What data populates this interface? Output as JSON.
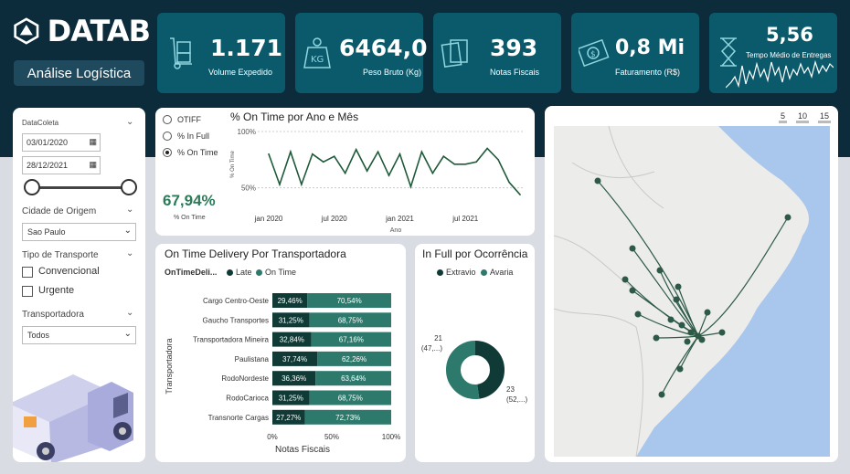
{
  "brand": {
    "logo_text": "DATAB",
    "page_button": "Análise Logística"
  },
  "kpis": [
    {
      "value": "1.171",
      "label": "Volume Expedido",
      "icon": "hand-truck-icon"
    },
    {
      "value": "6464,0",
      "label": "Peso Bruto (Kg)",
      "icon": "kg-weight-icon"
    },
    {
      "value": "393",
      "label": "Notas Fiscais",
      "icon": "documents-icon"
    },
    {
      "value": "0,8 Mi",
      "label": "Faturamento (R$)",
      "icon": "money-icon"
    },
    {
      "value": "5,56",
      "label": "Tempo Médio de Entregas",
      "icon": "hourglass-icon"
    }
  ],
  "filters": {
    "date_label": "DataColeta",
    "date_start": "03/01/2020",
    "date_end": "28/12/2021",
    "origin_label": "Cidade de Origem",
    "origin_value": "Sao Paulo",
    "transport_label": "Tipo de Transporte",
    "transport_options": [
      "Convencional",
      "Urgente"
    ],
    "carrier_label": "Transportadora",
    "carrier_value": "Todos"
  },
  "ontime": {
    "options": [
      "OTIFF",
      "% In Full",
      "% On Time"
    ],
    "selected": "% On Time",
    "big_value": "67,94%",
    "big_label": "% On Time",
    "title": "% On Time por Ano e Mês"
  },
  "chart_data": [
    {
      "type": "line",
      "title": "% On Time por Ano e Mês",
      "xlabel": "Ano",
      "ylabel": "% On Time",
      "yticks": [
        "100%",
        "50%"
      ],
      "xticks": [
        "jan 2020",
        "jul 2020",
        "jan 2021",
        "jul 2021"
      ],
      "ylim": [
        40,
        100
      ],
      "x": [
        "2020-01",
        "2020-02",
        "2020-03",
        "2020-04",
        "2020-05",
        "2020-06",
        "2020-07",
        "2020-08",
        "2020-09",
        "2020-10",
        "2020-11",
        "2020-12",
        "2021-01",
        "2021-02",
        "2021-03",
        "2021-04",
        "2021-05",
        "2021-06",
        "2021-07",
        "2021-08",
        "2021-09",
        "2021-10",
        "2021-11",
        "2021-12"
      ],
      "series": [
        {
          "values": [
            80,
            53,
            82,
            53,
            80,
            73,
            78,
            63,
            84,
            65,
            82,
            61,
            80,
            51,
            82,
            63,
            78,
            71,
            71,
            73,
            85,
            75,
            55,
            44
          ]
        }
      ]
    },
    {
      "type": "bar",
      "title": "On Time Delivery Por Transportadora",
      "legend_title": "OnTimeDeli...",
      "xlabel": "Notas Fiscais",
      "ylabel": "Transportadora",
      "xticks": [
        "0%",
        "50%",
        "100%"
      ],
      "categories": [
        "Cargo Centro-Oeste",
        "Gaucho Transportes",
        "Transportadora Mineira",
        "Paulistana",
        "RodoNordeste",
        "RodoCarioca",
        "Transnorte Cargas"
      ],
      "series": [
        {
          "name": "Late",
          "values": [
            29.46,
            31.25,
            32.84,
            37.74,
            36.36,
            31.25,
            27.27
          ],
          "labels": [
            "29,46%",
            "31,25%",
            "32,84%",
            "37,74%",
            "36,36%",
            "31,25%",
            "27,27%"
          ],
          "color": "#0f3a36"
        },
        {
          "name": "On Time",
          "values": [
            70.54,
            68.75,
            67.16,
            62.26,
            63.64,
            68.75,
            72.73
          ],
          "labels": [
            "70,54%",
            "68,75%",
            "67,16%",
            "62,26%",
            "63,64%",
            "68,75%",
            "72,73%"
          ],
          "color": "#2d7a6c"
        }
      ]
    },
    {
      "type": "pie",
      "title": "In Full por Ocorrência",
      "series": [
        {
          "name": "Extravio",
          "value": 21,
          "label_top": "21",
          "label_bottom": "(47,...)",
          "color": "#0f3a36"
        },
        {
          "name": "Avaria",
          "value": 23,
          "label_top": "23",
          "label_bottom": "(52,...)",
          "color": "#2d7a6c"
        }
      ]
    }
  ],
  "map": {
    "zoom_options": [
      "5",
      "10",
      "15"
    ]
  },
  "colors": {
    "dark": "#0c2b3b",
    "kpi": "#0b5a6b",
    "late": "#0f3a36",
    "ontime": "#2d7a6c",
    "line": "#1e5a3a"
  }
}
